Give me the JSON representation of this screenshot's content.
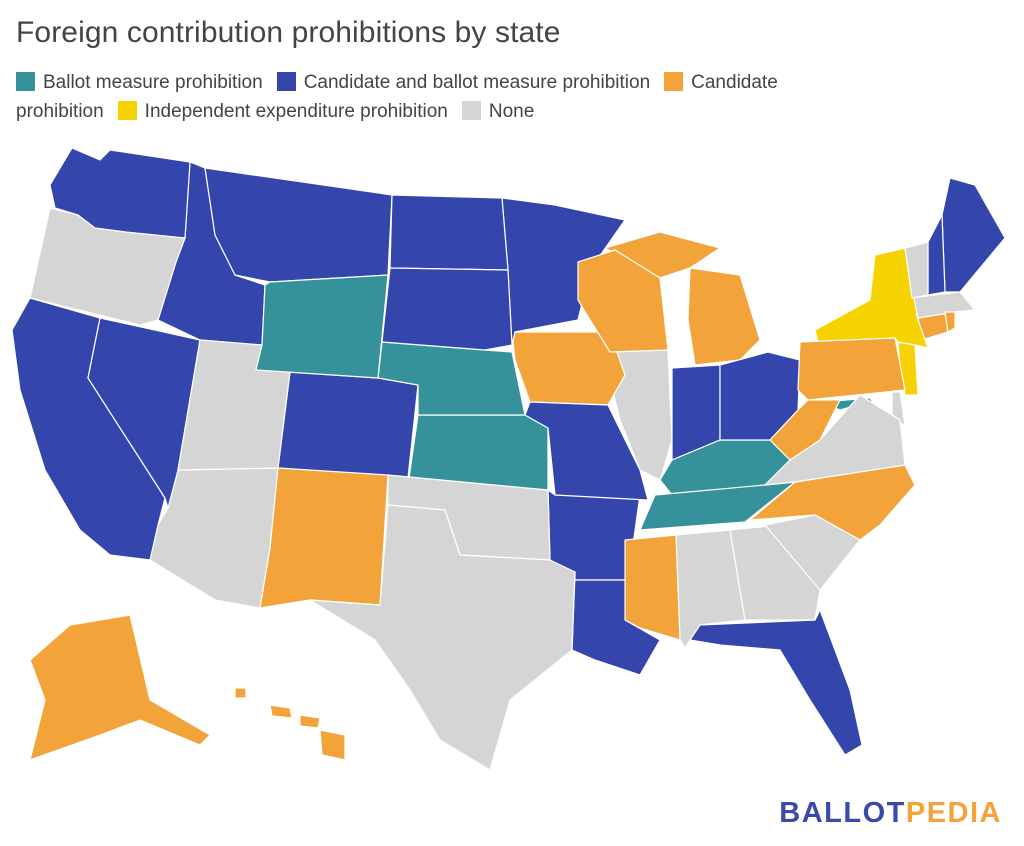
{
  "title": "Foreign contribution prohibitions by state",
  "legend": [
    {
      "label": "Ballot measure prohibition",
      "color": "#36929a"
    },
    {
      "label": "Candidate and ballot measure prohibition",
      "color": "#3446ab"
    },
    {
      "label": "Candidate prohibition",
      "color": "#f2a43a"
    },
    {
      "label": "Independent expenditure prohibition",
      "color": "#f6d300"
    },
    {
      "label": "None",
      "color": "#d5d5d5"
    }
  ],
  "map_data": {
    "Alabama": "None",
    "Alaska": "Candidate prohibition",
    "Arizona": "None",
    "Arkansas": "Candidate and ballot measure prohibition",
    "California": "Candidate and ballot measure prohibition",
    "Colorado": "Candidate and ballot measure prohibition",
    "Connecticut": "Candidate prohibition",
    "Delaware": "None",
    "Florida": "Candidate and ballot measure prohibition",
    "Georgia": "None",
    "Hawaii": "Candidate prohibition",
    "Idaho": "Candidate and ballot measure prohibition",
    "Illinois": "None",
    "Indiana": "Candidate and ballot measure prohibition",
    "Iowa": "Candidate prohibition",
    "Kansas": "Ballot measure prohibition",
    "Kentucky": "Ballot measure prohibition",
    "Louisiana": "Candidate and ballot measure prohibition",
    "Maine": "Candidate and ballot measure prohibition",
    "Maryland": "Ballot measure prohibition",
    "Massachusetts": "None",
    "Michigan": "Candidate prohibition",
    "Minnesota": "Candidate and ballot measure prohibition",
    "Mississippi": "Candidate prohibition",
    "Missouri": "Candidate and ballot measure prohibition",
    "Montana": "Candidate and ballot measure prohibition",
    "Nebraska": "Ballot measure prohibition",
    "Nevada": "Candidate and ballot measure prohibition",
    "New Hampshire": "Candidate and ballot measure prohibition",
    "New Jersey": "Independent expenditure prohibition",
    "New Mexico": "Candidate prohibition",
    "New York": "Independent expenditure prohibition",
    "North Carolina": "Candidate prohibition",
    "North Dakota": "Candidate and ballot measure prohibition",
    "Ohio": "Candidate and ballot measure prohibition",
    "Oklahoma": "None",
    "Oregon": "None",
    "Pennsylvania": "Candidate prohibition",
    "Rhode Island": "Candidate prohibition",
    "South Carolina": "None",
    "South Dakota": "Candidate and ballot measure prohibition",
    "Tennessee": "Ballot measure prohibition",
    "Texas": "None",
    "Utah": "None",
    "Vermont": "None",
    "Virginia": "None",
    "Washington": "Candidate and ballot measure prohibition",
    "West Virginia": "Candidate prohibition",
    "Wisconsin": "Candidate prohibition",
    "Wyoming": "Ballot measure prohibition"
  },
  "logo": {
    "part1": "BALLOT",
    "part2": "PEDIA"
  }
}
